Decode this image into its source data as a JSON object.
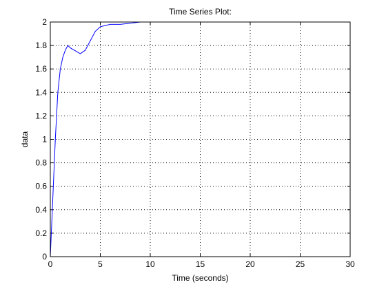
{
  "chart_data": {
    "type": "line",
    "title": "Time Series Plot:",
    "xlabel": "Time (seconds)",
    "ylabel": "data",
    "xlim": [
      0,
      30
    ],
    "ylim": [
      0,
      2
    ],
    "x_ticks": [
      0,
      5,
      10,
      15,
      20,
      25,
      30
    ],
    "y_ticks": [
      0,
      0.2,
      0.4,
      0.6,
      0.8,
      1,
      1.2,
      1.4,
      1.6,
      1.8,
      2
    ],
    "grid": true,
    "series": [
      {
        "color": "#0000ff",
        "x": [
          0,
          0.25,
          0.5,
          0.75,
          1.0,
          1.25,
          1.5,
          1.75,
          2.0,
          3.0,
          3.5,
          4.0,
          4.5,
          5.0,
          5.5,
          6.0,
          7.0,
          8.0,
          9.0
        ],
        "y": [
          0,
          0.5,
          1.0,
          1.4,
          1.6,
          1.7,
          1.76,
          1.8,
          1.78,
          1.73,
          1.76,
          1.84,
          1.92,
          1.96,
          1.97,
          1.98,
          1.98,
          1.99,
          2.0
        ]
      }
    ]
  }
}
